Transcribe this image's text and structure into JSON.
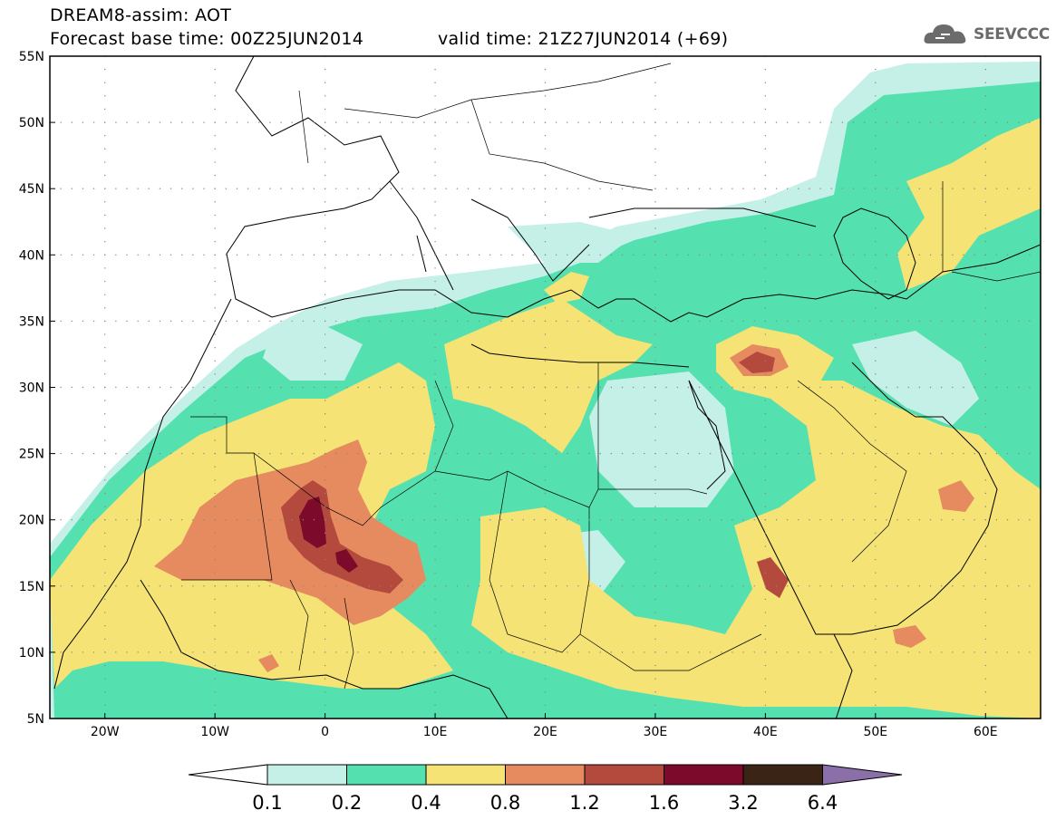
{
  "header": {
    "model_title": "DREAM8-assim: AOT",
    "base_time": "Forecast base time: 00Z25JUN2014",
    "valid_time": "valid time: 21Z27JUN2014 (+69)"
  },
  "logo": {
    "text": "SEEVCCC",
    "icon": "cloud-icon"
  },
  "map": {
    "extent": {
      "lon_min": -25,
      "lon_max": 65,
      "lat_min": 5,
      "lat_max": 55
    },
    "lat_labels": [
      "55N",
      "50N",
      "45N",
      "40N",
      "35N",
      "30N",
      "25N",
      "20N",
      "15N",
      "10N",
      "5N"
    ],
    "lon_labels": [
      "20W",
      "10W",
      "0",
      "10E",
      "20E",
      "30E",
      "40E",
      "50E",
      "60E"
    ],
    "variable": "AOT"
  },
  "colorbar": {
    "thresholds": [
      "0.1",
      "0.2",
      "0.4",
      "0.8",
      "1.2",
      "1.6",
      "3.2",
      "6.4"
    ],
    "colors": [
      "#ffffff",
      "#c5f0e8",
      "#55e0b0",
      "#f5e375",
      "#e68a5f",
      "#b44a3e",
      "#7c0a2a",
      "#3a2416",
      "#8b6fa8"
    ]
  },
  "colors": {
    "c01": "#c5f0e8",
    "c02": "#55e0b0",
    "c04": "#f5e375",
    "c08": "#e68a5f",
    "c12": "#b44a3e",
    "c16": "#7c0a2a",
    "c32": "#3a2416"
  }
}
